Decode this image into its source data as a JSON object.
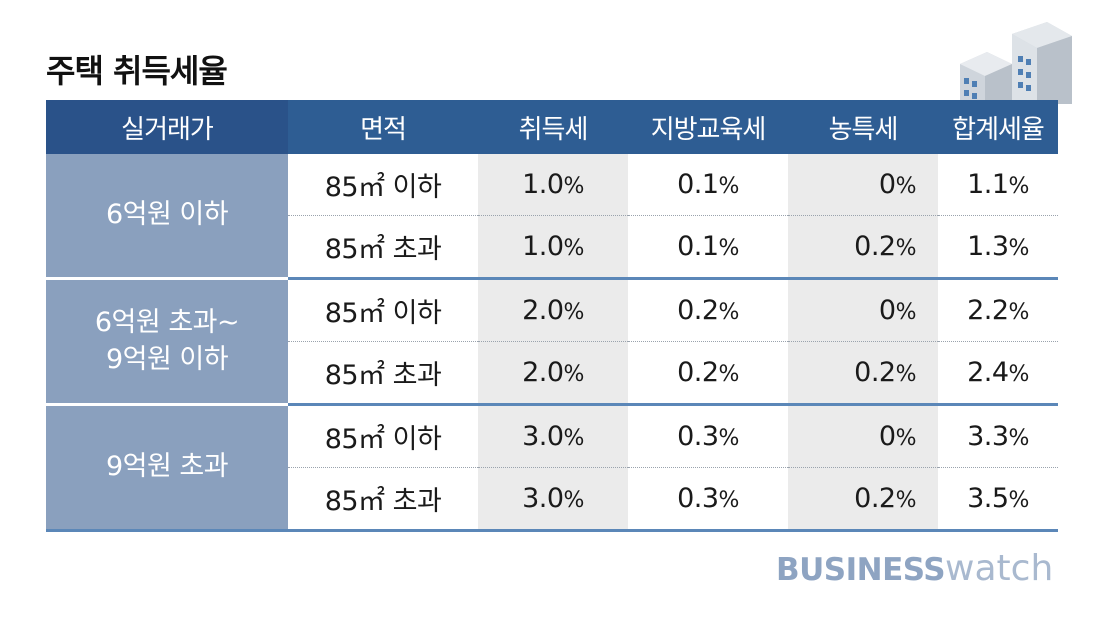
{
  "title": "주택 취득세율",
  "table": {
    "headers": [
      "실거래가",
      "면적",
      "취득세",
      "지방교육세",
      "농특세",
      "합계세율"
    ],
    "groups": [
      {
        "price": "6억원 이하",
        "rows": [
          {
            "area": "85㎡ 이하",
            "acquisition": "1.0",
            "education": "0.1",
            "rural": "0",
            "total": "1.1"
          },
          {
            "area": "85㎡ 초과",
            "acquisition": "1.0",
            "education": "0.1",
            "rural": "0.2",
            "total": "1.3"
          }
        ]
      },
      {
        "price": "6억원 초과~\n9억원 이하",
        "rows": [
          {
            "area": "85㎡ 이하",
            "acquisition": "2.0",
            "education": "0.2",
            "rural": "0",
            "total": "2.2"
          },
          {
            "area": "85㎡ 초과",
            "acquisition": "2.0",
            "education": "0.2",
            "rural": "0.2",
            "total": "2.4"
          }
        ]
      },
      {
        "price": "9억원 초과",
        "rows": [
          {
            "area": "85㎡ 이하",
            "acquisition": "3.0",
            "education": "0.3",
            "rural": "0",
            "total": "3.3"
          },
          {
            "area": "85㎡ 초과",
            "acquisition": "3.0",
            "education": "0.3",
            "rural": "0.2",
            "total": "3.5"
          }
        ]
      }
    ],
    "unit": "%"
  },
  "logo": {
    "bold": "BUSINESS",
    "light": "watch"
  },
  "icon": "buildings-icon",
  "colors": {
    "header": "#2e5d93",
    "price_cell": "#8aa0be",
    "shade": "#ebebeb",
    "logo": "#8ea4c2"
  }
}
